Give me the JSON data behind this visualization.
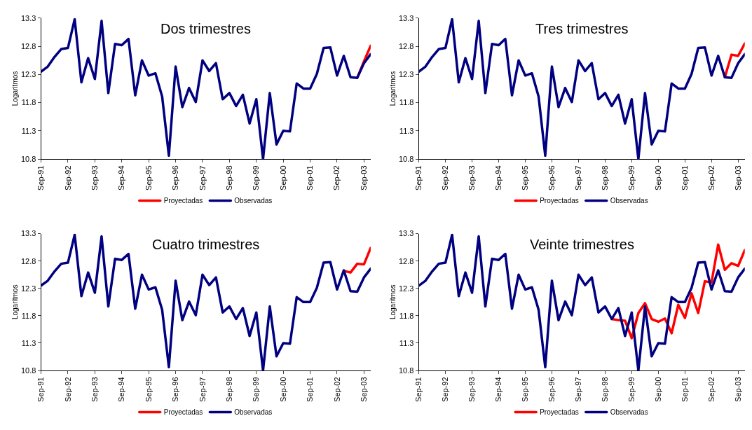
{
  "chart_data": [
    {
      "type": "line",
      "title": "Dos trimestres",
      "ylabel": "Logaritmos",
      "categories": [
        "Sep-91",
        null,
        null,
        null,
        "Sep-92",
        null,
        null,
        null,
        "Sep-93",
        null,
        null,
        null,
        "Sep-94",
        null,
        null,
        null,
        "Sep-95",
        null,
        null,
        null,
        "Sep-96",
        null,
        null,
        null,
        "Sep-97",
        null,
        null,
        null,
        "Sep-98",
        null,
        null,
        null,
        "Sep-99",
        null,
        null,
        null,
        "Sep-00",
        null,
        null,
        null,
        "Sep-01",
        null,
        null,
        null,
        "Sep-02",
        null,
        null,
        null,
        "Sep-03",
        null
      ],
      "series": [
        {
          "name": "Proyectadas",
          "color": "#ff0000",
          "values": [
            null,
            null,
            null,
            null,
            null,
            null,
            null,
            null,
            null,
            null,
            null,
            null,
            null,
            null,
            null,
            null,
            null,
            null,
            null,
            null,
            null,
            null,
            null,
            null,
            null,
            null,
            null,
            null,
            null,
            null,
            null,
            null,
            null,
            null,
            null,
            null,
            null,
            null,
            null,
            null,
            null,
            null,
            null,
            null,
            null,
            null,
            null,
            12.24,
            12.53,
            12.81
          ]
        },
        {
          "name": "Observadas",
          "color": "#000080",
          "values": [
            12.35,
            12.44,
            12.61,
            12.75,
            12.77,
            13.28,
            12.16,
            12.59,
            12.22,
            13.25,
            11.97,
            12.84,
            12.82,
            12.93,
            11.93,
            12.55,
            12.28,
            12.32,
            11.91,
            10.86,
            12.44,
            11.72,
            12.06,
            11.81,
            12.55,
            12.36,
            12.5,
            11.86,
            11.97,
            11.74,
            11.94,
            11.43,
            11.86,
            10.8,
            11.97,
            11.06,
            11.3,
            11.29,
            12.14,
            12.05,
            12.05,
            12.31,
            12.77,
            12.78,
            12.28,
            12.63,
            12.25,
            12.24,
            12.5,
            12.66
          ]
        }
      ],
      "ylim": [
        10.8,
        13.3
      ],
      "yticks": [
        10.8,
        11.3,
        11.8,
        12.3,
        12.8,
        13.3
      ],
      "legend": "bottom",
      "line_style": "solid"
    },
    {
      "type": "line",
      "title": "Tres trimestres",
      "ylabel": "Logaritmos",
      "categories": [
        "Sep-91",
        null,
        null,
        null,
        "Sep-92",
        null,
        null,
        null,
        "Sep-93",
        null,
        null,
        null,
        "Sep-94",
        null,
        null,
        null,
        "Sep-95",
        null,
        null,
        null,
        "Sep-96",
        null,
        null,
        null,
        "Sep-97",
        null,
        null,
        null,
        "Sep-98",
        null,
        null,
        null,
        "Sep-99",
        null,
        null,
        null,
        "Sep-00",
        null,
        null,
        null,
        "Sep-01",
        null,
        null,
        null,
        "Sep-02",
        null,
        null,
        null,
        "Sep-03",
        null
      ],
      "series": [
        {
          "name": "Proyectadas",
          "color": "#ff0000",
          "values": [
            null,
            null,
            null,
            null,
            null,
            null,
            null,
            null,
            null,
            null,
            null,
            null,
            null,
            null,
            null,
            null,
            null,
            null,
            null,
            null,
            null,
            null,
            null,
            null,
            null,
            null,
            null,
            null,
            null,
            null,
            null,
            null,
            null,
            null,
            null,
            null,
            null,
            null,
            null,
            null,
            null,
            null,
            null,
            null,
            null,
            null,
            12.25,
            12.65,
            12.63,
            12.85
          ]
        },
        {
          "name": "Observadas",
          "color": "#000080",
          "values": [
            12.35,
            12.44,
            12.61,
            12.75,
            12.77,
            13.28,
            12.16,
            12.59,
            12.22,
            13.25,
            11.97,
            12.84,
            12.82,
            12.93,
            11.93,
            12.55,
            12.28,
            12.32,
            11.91,
            10.86,
            12.44,
            11.72,
            12.06,
            11.81,
            12.55,
            12.36,
            12.5,
            11.86,
            11.97,
            11.74,
            11.94,
            11.43,
            11.86,
            10.8,
            11.97,
            11.06,
            11.3,
            11.29,
            12.14,
            12.05,
            12.05,
            12.31,
            12.77,
            12.78,
            12.28,
            12.63,
            12.25,
            12.24,
            12.5,
            12.66
          ]
        }
      ],
      "ylim": [
        10.8,
        13.3
      ],
      "yticks": [
        10.8,
        11.3,
        11.8,
        12.3,
        12.8,
        13.3
      ],
      "legend": "bottom",
      "line_style": "solid"
    },
    {
      "type": "line",
      "title": "Cuatro trimestres",
      "ylabel": "Logaritmos",
      "categories": [
        "Sep-91",
        null,
        null,
        null,
        "Sep-92",
        null,
        null,
        null,
        "Sep-93",
        null,
        null,
        null,
        "Sep-94",
        null,
        null,
        null,
        "Sep-95",
        null,
        null,
        null,
        "Sep-96",
        null,
        null,
        null,
        "Sep-97",
        null,
        null,
        null,
        "Sep-98",
        null,
        null,
        null,
        "Sep-99",
        null,
        null,
        null,
        "Sep-00",
        null,
        null,
        null,
        "Sep-01",
        null,
        null,
        null,
        "Sep-02",
        null,
        null,
        null,
        "Sep-03",
        null
      ],
      "series": [
        {
          "name": "Proyectadas",
          "color": "#ff0000",
          "values": [
            null,
            null,
            null,
            null,
            null,
            null,
            null,
            null,
            null,
            null,
            null,
            null,
            null,
            null,
            null,
            null,
            null,
            null,
            null,
            null,
            null,
            null,
            null,
            null,
            null,
            null,
            null,
            null,
            null,
            null,
            null,
            null,
            null,
            null,
            null,
            null,
            null,
            null,
            null,
            null,
            null,
            null,
            null,
            null,
            null,
            12.62,
            12.59,
            12.75,
            12.74,
            13.04
          ]
        },
        {
          "name": "Observadas",
          "color": "#000080",
          "values": [
            12.35,
            12.44,
            12.61,
            12.75,
            12.77,
            13.28,
            12.16,
            12.59,
            12.22,
            13.25,
            11.97,
            12.84,
            12.82,
            12.93,
            11.93,
            12.55,
            12.28,
            12.32,
            11.91,
            10.86,
            12.44,
            11.72,
            12.06,
            11.81,
            12.55,
            12.36,
            12.5,
            11.86,
            11.97,
            11.74,
            11.94,
            11.43,
            11.86,
            10.8,
            11.97,
            11.06,
            11.3,
            11.29,
            12.14,
            12.05,
            12.05,
            12.31,
            12.77,
            12.78,
            12.28,
            12.63,
            12.25,
            12.24,
            12.5,
            12.66
          ]
        }
      ],
      "ylim": [
        10.8,
        13.3
      ],
      "yticks": [
        10.8,
        11.3,
        11.8,
        12.3,
        12.8,
        13.3
      ],
      "legend": "bottom",
      "line_style": "solid"
    },
    {
      "type": "line",
      "title": "Veinte trimestres",
      "ylabel": "Logaritmos",
      "categories": [
        "Sep-91",
        null,
        null,
        null,
        "Sep-92",
        null,
        null,
        null,
        "Sep-93",
        null,
        null,
        null,
        "Sep-94",
        null,
        null,
        null,
        "Sep-95",
        null,
        null,
        null,
        "Sep-96",
        null,
        null,
        null,
        "Sep-97",
        null,
        null,
        null,
        "Sep-98",
        null,
        null,
        null,
        "Sep-99",
        null,
        null,
        null,
        "Sep-00",
        null,
        null,
        null,
        "Sep-01",
        null,
        null,
        null,
        "Sep-02",
        null,
        null,
        null,
        "Sep-03",
        null
      ],
      "series": [
        {
          "name": "Proyectadas",
          "color": "#ff0000",
          "values": [
            null,
            null,
            null,
            null,
            null,
            null,
            null,
            null,
            null,
            null,
            null,
            null,
            null,
            null,
            null,
            null,
            null,
            null,
            null,
            null,
            null,
            null,
            null,
            null,
            null,
            null,
            null,
            null,
            null,
            11.74,
            11.72,
            11.71,
            11.39,
            11.85,
            12.03,
            11.74,
            11.69,
            11.75,
            11.48,
            12.0,
            11.76,
            12.21,
            11.85,
            12.43,
            12.41,
            13.1,
            12.64,
            12.76,
            12.71,
            13.0
          ]
        },
        {
          "name": "Observadas",
          "color": "#000080",
          "values": [
            12.35,
            12.44,
            12.61,
            12.75,
            12.77,
            13.28,
            12.16,
            12.59,
            12.22,
            13.25,
            11.97,
            12.84,
            12.82,
            12.93,
            11.93,
            12.55,
            12.28,
            12.32,
            11.91,
            10.86,
            12.44,
            11.72,
            12.06,
            11.81,
            12.55,
            12.36,
            12.5,
            11.86,
            11.97,
            11.74,
            11.94,
            11.43,
            11.86,
            10.8,
            11.97,
            11.06,
            11.3,
            11.29,
            12.14,
            12.05,
            12.05,
            12.31,
            12.77,
            12.78,
            12.28,
            12.63,
            12.25,
            12.24,
            12.5,
            12.66
          ]
        }
      ],
      "ylim": [
        10.8,
        13.3
      ],
      "yticks": [
        10.8,
        11.3,
        11.8,
        12.3,
        12.8,
        13.3
      ],
      "legend": "bottom",
      "line_style": "solid"
    }
  ]
}
